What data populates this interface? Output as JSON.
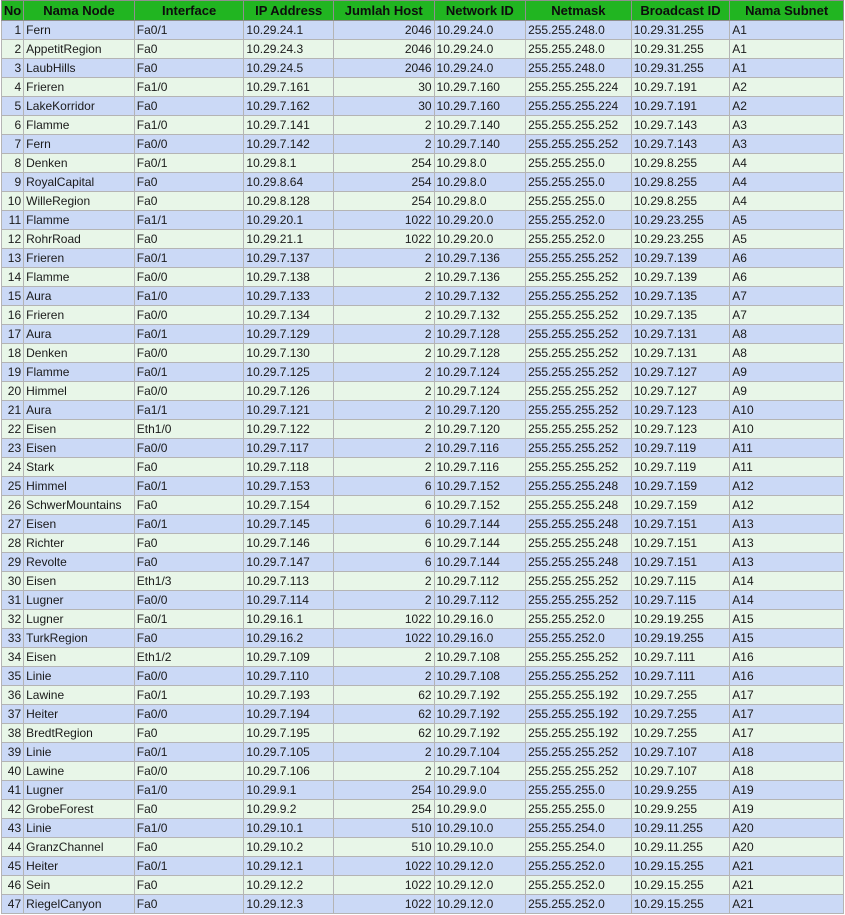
{
  "headers": [
    "No",
    "Nama Node",
    "Interface",
    "IP Address",
    "Jumlah Host",
    "Network ID",
    "Netmask",
    "Broadcast ID",
    "Nama Subnet"
  ],
  "rows": [
    [
      "1",
      "Fern",
      "Fa0/1",
      "10.29.24.1",
      "2046",
      "10.29.24.0",
      "255.255.248.0",
      "10.29.31.255",
      "A1"
    ],
    [
      "2",
      "AppetitRegion",
      "Fa0",
      "10.29.24.3",
      "2046",
      "10.29.24.0",
      "255.255.248.0",
      "10.29.31.255",
      "A1"
    ],
    [
      "3",
      "LaubHills",
      "Fa0",
      "10.29.24.5",
      "2046",
      "10.29.24.0",
      "255.255.248.0",
      "10.29.31.255",
      "A1"
    ],
    [
      "4",
      "Frieren",
      "Fa1/0",
      "10.29.7.161",
      "30",
      "10.29.7.160",
      "255.255.255.224",
      "10.29.7.191",
      "A2"
    ],
    [
      "5",
      "LakeKorridor",
      "Fa0",
      "10.29.7.162",
      "30",
      "10.29.7.160",
      "255.255.255.224",
      "10.29.7.191",
      "A2"
    ],
    [
      "6",
      "Flamme",
      "Fa1/0",
      "10.29.7.141",
      "2",
      "10.29.7.140",
      "255.255.255.252",
      "10.29.7.143",
      "A3"
    ],
    [
      "7",
      "Fern",
      "Fa0/0",
      "10.29.7.142",
      "2",
      "10.29.7.140",
      "255.255.255.252",
      "10.29.7.143",
      "A3"
    ],
    [
      "8",
      "Denken",
      "Fa0/1",
      "10.29.8.1",
      "254",
      "10.29.8.0",
      "255.255.255.0",
      "10.29.8.255",
      "A4"
    ],
    [
      "9",
      "RoyalCapital",
      "Fa0",
      "10.29.8.64",
      "254",
      "10.29.8.0",
      "255.255.255.0",
      "10.29.8.255",
      "A4"
    ],
    [
      "10",
      "WilleRegion",
      "Fa0",
      "10.29.8.128",
      "254",
      "10.29.8.0",
      "255.255.255.0",
      "10.29.8.255",
      "A4"
    ],
    [
      "11",
      "Flamme",
      "Fa1/1",
      "10.29.20.1",
      "1022",
      "10.29.20.0",
      "255.255.252.0",
      "10.29.23.255",
      "A5"
    ],
    [
      "12",
      "RohrRoad",
      "Fa0",
      "10.29.21.1",
      "1022",
      "10.29.20.0",
      "255.255.252.0",
      "10.29.23.255",
      "A5"
    ],
    [
      "13",
      "Frieren",
      "Fa0/1",
      "10.29.7.137",
      "2",
      "10.29.7.136",
      "255.255.255.252",
      "10.29.7.139",
      "A6"
    ],
    [
      "14",
      "Flamme",
      "Fa0/0",
      "10.29.7.138",
      "2",
      "10.29.7.136",
      "255.255.255.252",
      "10.29.7.139",
      "A6"
    ],
    [
      "15",
      "Aura",
      "Fa1/0",
      "10.29.7.133",
      "2",
      "10.29.7.132",
      "255.255.255.252",
      "10.29.7.135",
      "A7"
    ],
    [
      "16",
      "Frieren",
      "Fa0/0",
      "10.29.7.134",
      "2",
      "10.29.7.132",
      "255.255.255.252",
      "10.29.7.135",
      "A7"
    ],
    [
      "17",
      "Aura",
      "Fa0/1",
      "10.29.7.129",
      "2",
      "10.29.7.128",
      "255.255.255.252",
      "10.29.7.131",
      "A8"
    ],
    [
      "18",
      "Denken",
      "Fa0/0",
      "10.29.7.130",
      "2",
      "10.29.7.128",
      "255.255.255.252",
      "10.29.7.131",
      "A8"
    ],
    [
      "19",
      "Flamme",
      "Fa0/1",
      "10.29.7.125",
      "2",
      "10.29.7.124",
      "255.255.255.252",
      "10.29.7.127",
      "A9"
    ],
    [
      "20",
      "Himmel",
      "Fa0/0",
      "10.29.7.126",
      "2",
      "10.29.7.124",
      "255.255.255.252",
      "10.29.7.127",
      "A9"
    ],
    [
      "21",
      "Aura",
      "Fa1/1",
      "10.29.7.121",
      "2",
      "10.29.7.120",
      "255.255.255.252",
      "10.29.7.123",
      "A10"
    ],
    [
      "22",
      "Eisen",
      "Eth1/0",
      "10.29.7.122",
      "2",
      "10.29.7.120",
      "255.255.255.252",
      "10.29.7.123",
      "A10"
    ],
    [
      "23",
      "Eisen",
      "Fa0/0",
      "10.29.7.117",
      "2",
      "10.29.7.116",
      "255.255.255.252",
      "10.29.7.119",
      "A11"
    ],
    [
      "24",
      "Stark",
      "Fa0",
      "10.29.7.118",
      "2",
      "10.29.7.116",
      "255.255.255.252",
      "10.29.7.119",
      "A11"
    ],
    [
      "25",
      "Himmel",
      "Fa0/1",
      "10.29.7.153",
      "6",
      "10.29.7.152",
      "255.255.255.248",
      "10.29.7.159",
      "A12"
    ],
    [
      "26",
      "SchwerMountains",
      "Fa0",
      "10.29.7.154",
      "6",
      "10.29.7.152",
      "255.255.255.248",
      "10.29.7.159",
      "A12"
    ],
    [
      "27",
      "Eisen",
      "Fa0/1",
      "10.29.7.145",
      "6",
      "10.29.7.144",
      "255.255.255.248",
      "10.29.7.151",
      "A13"
    ],
    [
      "28",
      "Richter",
      "Fa0",
      "10.29.7.146",
      "6",
      "10.29.7.144",
      "255.255.255.248",
      "10.29.7.151",
      "A13"
    ],
    [
      "29",
      "Revolte",
      "Fa0",
      "10.29.7.147",
      "6",
      "10.29.7.144",
      "255.255.255.248",
      "10.29.7.151",
      "A13"
    ],
    [
      "30",
      "Eisen",
      "Eth1/3",
      "10.29.7.113",
      "2",
      "10.29.7.112",
      "255.255.255.252",
      "10.29.7.115",
      "A14"
    ],
    [
      "31",
      "Lugner",
      "Fa0/0",
      "10.29.7.114",
      "2",
      "10.29.7.112",
      "255.255.255.252",
      "10.29.7.115",
      "A14"
    ],
    [
      "32",
      "Lugner",
      "Fa0/1",
      "10.29.16.1",
      "1022",
      "10.29.16.0",
      "255.255.252.0",
      "10.29.19.255",
      "A15"
    ],
    [
      "33",
      "TurkRegion",
      "Fa0",
      "10.29.16.2",
      "1022",
      "10.29.16.0",
      "255.255.252.0",
      "10.29.19.255",
      "A15"
    ],
    [
      "34",
      "Eisen",
      "Eth1/2",
      "10.29.7.109",
      "2",
      "10.29.7.108",
      "255.255.255.252",
      "10.29.7.111",
      "A16"
    ],
    [
      "35",
      "Linie",
      "Fa0/0",
      "10.29.7.110",
      "2",
      "10.29.7.108",
      "255.255.255.252",
      "10.29.7.111",
      "A16"
    ],
    [
      "36",
      "Lawine",
      "Fa0/1",
      "10.29.7.193",
      "62",
      "10.29.7.192",
      "255.255.255.192",
      "10.29.7.255",
      "A17"
    ],
    [
      "37",
      "Heiter",
      "Fa0/0",
      "10.29.7.194",
      "62",
      "10.29.7.192",
      "255.255.255.192",
      "10.29.7.255",
      "A17"
    ],
    [
      "38",
      "BredtRegion",
      "Fa0",
      "10.29.7.195",
      "62",
      "10.29.7.192",
      "255.255.255.192",
      "10.29.7.255",
      "A17"
    ],
    [
      "39",
      "Linie",
      "Fa0/1",
      "10.29.7.105",
      "2",
      "10.29.7.104",
      "255.255.255.252",
      "10.29.7.107",
      "A18"
    ],
    [
      "40",
      "Lawine",
      "Fa0/0",
      "10.29.7.106",
      "2",
      "10.29.7.104",
      "255.255.255.252",
      "10.29.7.107",
      "A18"
    ],
    [
      "41",
      "Lugner",
      "Fa1/0",
      "10.29.9.1",
      "254",
      "10.29.9.0",
      "255.255.255.0",
      "10.29.9.255",
      "A19"
    ],
    [
      "42",
      "GrobeForest",
      "Fa0",
      "10.29.9.2",
      "254",
      "10.29.9.0",
      "255.255.255.0",
      "10.29.9.255",
      "A19"
    ],
    [
      "43",
      "Linie",
      "Fa1/0",
      "10.29.10.1",
      "510",
      "10.29.10.0",
      "255.255.254.0",
      "10.29.11.255",
      "A20"
    ],
    [
      "44",
      "GranzChannel",
      "Fa0",
      "10.29.10.2",
      "510",
      "10.29.10.0",
      "255.255.254.0",
      "10.29.11.255",
      "A20"
    ],
    [
      "45",
      "Heiter",
      "Fa0/1",
      "10.29.12.1",
      "1022",
      "10.29.12.0",
      "255.255.252.0",
      "10.29.15.255",
      "A21"
    ],
    [
      "46",
      "Sein",
      "Fa0",
      "10.29.12.2",
      "1022",
      "10.29.12.0",
      "255.255.252.0",
      "10.29.15.255",
      "A21"
    ],
    [
      "47",
      "RiegelCanyon",
      "Fa0",
      "10.29.12.3",
      "1022",
      "10.29.12.0",
      "255.255.252.0",
      "10.29.15.255",
      "A21"
    ]
  ],
  "colors": {
    "header_bg": "#21b521",
    "row_odd_bg": "#cbd9f6",
    "row_even_bg": "#e8f6e8"
  }
}
